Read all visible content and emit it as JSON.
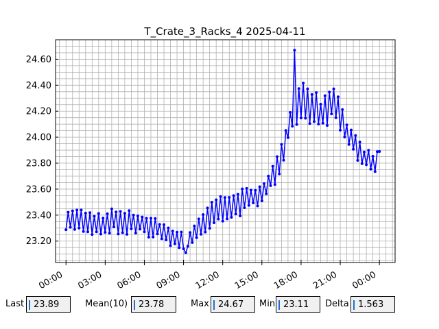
{
  "chart_data": {
    "type": "line",
    "title": "T_Crate_3_Racks_4 2025-04-11",
    "xlabel": "",
    "ylabel": "",
    "x_ticks": [
      "00:00",
      "03:00",
      "06:00",
      "09:00",
      "12:00",
      "15:00",
      "18:00",
      "21:00",
      "00:00"
    ],
    "x_range_hours": [
      -0.8,
      25.2
    ],
    "y_ticks": [
      "23.20",
      "23.40",
      "23.60",
      "23.80",
      "24.00",
      "24.20",
      "24.40",
      "24.60"
    ],
    "ylim": [
      23.035,
      24.75
    ],
    "grid": true,
    "series": [
      {
        "color": "#0000ff",
        "marker": "circle",
        "sample_interval_min": 10,
        "x_hours": [
          0,
          0.5,
          1,
          1.5,
          2,
          2.5,
          3,
          3.5,
          4,
          4.5,
          5,
          5.5,
          6,
          6.5,
          7,
          7.5,
          8,
          8.5,
          9,
          9.5,
          10,
          10.5,
          11,
          11.5,
          12,
          12.5,
          13,
          13.5,
          14,
          14.5,
          15,
          15.5,
          16,
          16.5,
          17,
          17.5,
          18,
          18.5,
          19,
          19.5,
          20,
          20.5,
          21,
          21.5,
          22,
          22.5,
          23,
          23.5,
          24
        ],
        "values": [
          23.32,
          23.38,
          23.36,
          23.35,
          23.34,
          23.33,
          23.34,
          23.36,
          23.35,
          23.34,
          23.35,
          23.34,
          23.33,
          23.31,
          23.29,
          23.27,
          23.25,
          23.22,
          23.19,
          23.22,
          23.28,
          23.35,
          23.4,
          23.44,
          23.46,
          23.47,
          23.48,
          23.5,
          23.52,
          23.55,
          23.58,
          23.64,
          23.72,
          23.85,
          24.05,
          24.22,
          24.3,
          24.28,
          24.22,
          24.15,
          24.2,
          24.25,
          24.15,
          24.03,
          23.95,
          23.88,
          23.83,
          23.78,
          23.89
        ],
        "spread": [
          0.08,
          0.1,
          0.1,
          0.09,
          0.1,
          0.1,
          0.09,
          0.1,
          0.1,
          0.1,
          0.09,
          0.09,
          0.09,
          0.09,
          0.08,
          0.08,
          0.09,
          0.08,
          0.07,
          0.08,
          0.09,
          0.1,
          0.11,
          0.11,
          0.11,
          0.12,
          0.12,
          0.11,
          0.1,
          0.09,
          0.09,
          0.08,
          0.09,
          0.1,
          0.13,
          0.2,
          0.18,
          0.17,
          0.16,
          0.15,
          0.14,
          0.13,
          0.13,
          0.12,
          0.1,
          0.1,
          0.09,
          0.09,
          0.08
        ],
        "max_point": {
          "x_hours": 17.5,
          "value": 24.67
        },
        "min_point": {
          "x_hours": 9.1,
          "value": 23.11
        }
      }
    ]
  },
  "stats": {
    "last": {
      "label": "Last",
      "value": "23.89"
    },
    "mean": {
      "label": "Mean(10)",
      "value": "23.78"
    },
    "max": {
      "label": "Max",
      "value": "24.67"
    },
    "min": {
      "label": "Min",
      "value": "23.11"
    },
    "delta": {
      "label": "Delta",
      "value": "1.563"
    }
  }
}
